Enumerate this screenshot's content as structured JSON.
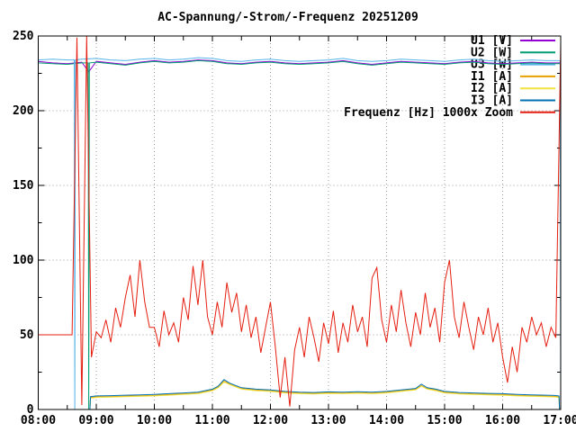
{
  "chart_data": {
    "type": "line",
    "title": "AC-Spannung/-Strom/-Frequenz 20251209",
    "xlabel": "",
    "ylabel": "",
    "x_axis": {
      "min_hour": 8,
      "max_hour": 17,
      "tick_labels": [
        "08:00",
        "09:00",
        "10:00",
        "11:00",
        "12:00",
        "13:00",
        "14:00",
        "15:00",
        "16:00",
        "17:00"
      ],
      "minor_step_hours": 0.5,
      "grid": "dotted-gray-at-hours"
    },
    "y_axis": {
      "min": 0,
      "max": 250,
      "tick_labels": [
        "0",
        "50",
        "100",
        "150",
        "200",
        "250"
      ],
      "major_step": 50,
      "minor_step": 25,
      "grid": "dotted-gray-at-majors"
    },
    "legend_position": "top-right-inside",
    "grid_color": "#999999",
    "border_color": "#000000",
    "background_color": "#ffffff",
    "series": [
      {
        "name": "U1 [V]",
        "color": "#9400d3",
        "points": [
          [
            8.0,
            233
          ],
          [
            8.25,
            232
          ],
          [
            8.5,
            231.5
          ],
          [
            8.75,
            232.5
          ],
          [
            8.87,
            226
          ],
          [
            9.0,
            233
          ],
          [
            9.25,
            232
          ],
          [
            9.5,
            231
          ],
          [
            9.75,
            232.5
          ],
          [
            10.0,
            233.5
          ],
          [
            10.25,
            232.5
          ],
          [
            10.5,
            233
          ],
          [
            10.75,
            234
          ],
          [
            11.0,
            233.5
          ],
          [
            11.25,
            232
          ],
          [
            11.5,
            231.5
          ],
          [
            11.75,
            232.5
          ],
          [
            12.0,
            233
          ],
          [
            12.25,
            232
          ],
          [
            12.5,
            231.5
          ],
          [
            12.75,
            232
          ],
          [
            13.0,
            232.5
          ],
          [
            13.25,
            233.5
          ],
          [
            13.5,
            232
          ],
          [
            13.75,
            231
          ],
          [
            14.0,
            232
          ],
          [
            14.25,
            233
          ],
          [
            14.5,
            232.5
          ],
          [
            14.75,
            232
          ],
          [
            15.0,
            231.5
          ],
          [
            15.25,
            232.5
          ],
          [
            15.5,
            233
          ],
          [
            15.75,
            232
          ],
          [
            16.0,
            231.5
          ],
          [
            16.25,
            232
          ],
          [
            16.5,
            232.5
          ],
          [
            16.75,
            232
          ],
          [
            17.0,
            232
          ]
        ]
      },
      {
        "name": "U2 [W]",
        "color": "#009e73",
        "points": [
          [
            8.0,
            232
          ],
          [
            8.25,
            231.5
          ],
          [
            8.5,
            231
          ],
          [
            8.75,
            232
          ],
          [
            8.86,
            232
          ],
          [
            8.87,
            0
          ],
          [
            8.88,
            232
          ],
          [
            9.0,
            232.5
          ],
          [
            9.25,
            231.5
          ],
          [
            9.5,
            230.5
          ],
          [
            9.75,
            232
          ],
          [
            10.0,
            233
          ],
          [
            10.25,
            232
          ],
          [
            10.5,
            232.5
          ],
          [
            10.75,
            233.5
          ],
          [
            11.0,
            233
          ],
          [
            11.25,
            231.5
          ],
          [
            11.5,
            231
          ],
          [
            11.75,
            232
          ],
          [
            12.0,
            232.5
          ],
          [
            12.25,
            231.5
          ],
          [
            12.5,
            231
          ],
          [
            12.75,
            231.5
          ],
          [
            13.0,
            232
          ],
          [
            13.25,
            233
          ],
          [
            13.5,
            231.5
          ],
          [
            13.75,
            230.5
          ],
          [
            14.0,
            231.5
          ],
          [
            14.25,
            232.5
          ],
          [
            14.5,
            232
          ],
          [
            14.75,
            231.5
          ],
          [
            15.0,
            231
          ],
          [
            15.25,
            232
          ],
          [
            15.5,
            232.5
          ],
          [
            15.75,
            231.5
          ],
          [
            16.0,
            231
          ],
          [
            16.25,
            231.5
          ],
          [
            16.5,
            232
          ],
          [
            16.75,
            231.5
          ],
          [
            17.0,
            231.5
          ]
        ]
      },
      {
        "name": "U3 [W]",
        "color": "#56b4e9",
        "points": [
          [
            8.0,
            234
          ],
          [
            8.25,
            234.5
          ],
          [
            8.5,
            234
          ],
          [
            8.62,
            234
          ],
          [
            8.63,
            0
          ],
          [
            8.64,
            234
          ],
          [
            8.75,
            234.5
          ],
          [
            9.0,
            235
          ],
          [
            9.25,
            234
          ],
          [
            9.5,
            233.5
          ],
          [
            9.75,
            234.5
          ],
          [
            10.0,
            235
          ],
          [
            10.25,
            234
          ],
          [
            10.5,
            234.5
          ],
          [
            10.75,
            235.5
          ],
          [
            11.0,
            235
          ],
          [
            11.25,
            233.5
          ],
          [
            11.5,
            233
          ],
          [
            11.75,
            234
          ],
          [
            12.0,
            234.5
          ],
          [
            12.25,
            233.5
          ],
          [
            12.5,
            233
          ],
          [
            12.75,
            233.5
          ],
          [
            13.0,
            234
          ],
          [
            13.25,
            235
          ],
          [
            13.5,
            233.5
          ],
          [
            13.75,
            233
          ],
          [
            14.0,
            233.5
          ],
          [
            14.25,
            234.5
          ],
          [
            14.5,
            234
          ],
          [
            14.75,
            233.5
          ],
          [
            15.0,
            233
          ],
          [
            15.25,
            234
          ],
          [
            15.5,
            234.5
          ],
          [
            15.75,
            233.5
          ],
          [
            16.0,
            233
          ],
          [
            16.25,
            233.5
          ],
          [
            16.5,
            234
          ],
          [
            16.75,
            233.5
          ],
          [
            16.99,
            233.5
          ],
          [
            17.0,
            0
          ]
        ]
      },
      {
        "name": "I1 [A]",
        "color": "#e69f00",
        "points": [
          [
            8.0,
            0
          ],
          [
            8.89,
            0
          ],
          [
            8.9,
            8
          ],
          [
            9.0,
            8.5
          ],
          [
            9.25,
            8.7
          ],
          [
            9.5,
            9
          ],
          [
            9.75,
            9.2
          ],
          [
            10.0,
            9.5
          ],
          [
            10.25,
            10
          ],
          [
            10.5,
            10.5
          ],
          [
            10.75,
            11
          ],
          [
            11.0,
            13
          ],
          [
            11.1,
            15
          ],
          [
            11.2,
            19
          ],
          [
            11.3,
            17
          ],
          [
            11.4,
            15.5
          ],
          [
            11.5,
            14
          ],
          [
            11.75,
            13
          ],
          [
            12.0,
            12.5
          ],
          [
            12.25,
            11.5
          ],
          [
            12.5,
            11
          ],
          [
            12.75,
            10.8
          ],
          [
            13.0,
            11.2
          ],
          [
            13.25,
            11
          ],
          [
            13.5,
            11.3
          ],
          [
            13.75,
            11
          ],
          [
            14.0,
            11.5
          ],
          [
            14.25,
            12.5
          ],
          [
            14.5,
            13.5
          ],
          [
            14.6,
            16
          ],
          [
            14.7,
            14
          ],
          [
            14.85,
            13
          ],
          [
            15.0,
            11.5
          ],
          [
            15.25,
            10.8
          ],
          [
            15.5,
            10.5
          ],
          [
            15.75,
            10.2
          ],
          [
            16.0,
            10
          ],
          [
            16.25,
            9.5
          ],
          [
            16.5,
            9.2
          ],
          [
            16.75,
            9
          ],
          [
            16.9,
            8.8
          ],
          [
            16.97,
            8.5
          ],
          [
            16.98,
            0
          ],
          [
            17.0,
            0
          ]
        ]
      },
      {
        "name": "I2 [A]",
        "color": "#f0e442",
        "points": [
          [
            8.0,
            0
          ],
          [
            8.89,
            0
          ],
          [
            8.9,
            7.6
          ],
          [
            9.0,
            8.1
          ],
          [
            9.25,
            8.3
          ],
          [
            9.5,
            8.6
          ],
          [
            9.75,
            8.8
          ],
          [
            10.0,
            9.1
          ],
          [
            10.25,
            9.6
          ],
          [
            10.5,
            10.1
          ],
          [
            10.75,
            10.6
          ],
          [
            11.0,
            12.6
          ],
          [
            11.1,
            14.6
          ],
          [
            11.2,
            18.4
          ],
          [
            11.3,
            16.6
          ],
          [
            11.4,
            15.1
          ],
          [
            11.5,
            13.6
          ],
          [
            11.75,
            12.6
          ],
          [
            12.0,
            12.1
          ],
          [
            12.25,
            11.1
          ],
          [
            12.5,
            10.6
          ],
          [
            12.75,
            10.4
          ],
          [
            13.0,
            10.8
          ],
          [
            13.25,
            10.6
          ],
          [
            13.5,
            10.9
          ],
          [
            13.75,
            10.6
          ],
          [
            14.0,
            11.1
          ],
          [
            14.25,
            12.1
          ],
          [
            14.5,
            13.1
          ],
          [
            14.6,
            15.6
          ],
          [
            14.7,
            13.6
          ],
          [
            14.85,
            12.6
          ],
          [
            15.0,
            11.1
          ],
          [
            15.25,
            10.4
          ],
          [
            15.5,
            10.1
          ],
          [
            15.75,
            9.8
          ],
          [
            16.0,
            9.6
          ],
          [
            16.25,
            9.1
          ],
          [
            16.5,
            8.8
          ],
          [
            16.75,
            8.6
          ],
          [
            16.9,
            8.4
          ],
          [
            16.97,
            8.1
          ],
          [
            16.98,
            0
          ],
          [
            17.0,
            0
          ]
        ]
      },
      {
        "name": "I3 [A]",
        "color": "#0072b2",
        "points": [
          [
            8.0,
            0
          ],
          [
            8.89,
            0
          ],
          [
            8.9,
            8.6
          ],
          [
            9.0,
            9.1
          ],
          [
            9.25,
            9.3
          ],
          [
            9.5,
            9.6
          ],
          [
            9.75,
            9.8
          ],
          [
            10.0,
            10.1
          ],
          [
            10.25,
            10.6
          ],
          [
            10.5,
            11.1
          ],
          [
            10.75,
            11.6
          ],
          [
            11.0,
            13.6
          ],
          [
            11.1,
            15.6
          ],
          [
            11.2,
            20
          ],
          [
            11.3,
            17.6
          ],
          [
            11.4,
            16.1
          ],
          [
            11.5,
            14.6
          ],
          [
            11.75,
            13.6
          ],
          [
            12.0,
            13.1
          ],
          [
            12.25,
            12.1
          ],
          [
            12.5,
            11.6
          ],
          [
            12.75,
            11.4
          ],
          [
            13.0,
            11.8
          ],
          [
            13.25,
            11.6
          ],
          [
            13.5,
            11.9
          ],
          [
            13.75,
            11.6
          ],
          [
            14.0,
            12.1
          ],
          [
            14.25,
            13.1
          ],
          [
            14.5,
            14.1
          ],
          [
            14.6,
            17
          ],
          [
            14.7,
            14.6
          ],
          [
            14.85,
            13.6
          ],
          [
            15.0,
            12.1
          ],
          [
            15.25,
            11.4
          ],
          [
            15.5,
            11.1
          ],
          [
            15.75,
            10.8
          ],
          [
            16.0,
            10.6
          ],
          [
            16.25,
            10.1
          ],
          [
            16.5,
            9.8
          ],
          [
            16.75,
            9.6
          ],
          [
            16.9,
            9.4
          ],
          [
            16.97,
            9.1
          ],
          [
            16.98,
            0
          ],
          [
            17.0,
            0
          ]
        ]
      },
      {
        "name": "Frequenz [Hz] 1000x Zoom",
        "color": "#e51e10",
        "t0": 8,
        "dt_minutes": 5,
        "values": [
          50,
          50,
          50,
          50,
          50,
          50,
          50,
          50,
          249,
          3,
          250,
          35,
          52,
          48,
          60,
          45,
          68,
          55,
          75,
          90,
          62,
          100,
          72,
          55,
          55,
          42,
          66,
          50,
          58,
          45,
          75,
          60,
          96,
          70,
          100,
          62,
          50,
          72,
          55,
          85,
          65,
          78,
          52,
          70,
          48,
          62,
          38,
          55,
          72,
          42,
          8,
          35,
          2,
          40,
          55,
          35,
          62,
          48,
          32,
          58,
          44,
          66,
          38,
          58,
          45,
          70,
          52,
          62,
          42,
          88,
          95,
          60,
          45,
          70,
          52,
          80,
          58,
          42,
          65,
          50,
          78,
          55,
          68,
          45,
          85,
          100,
          62,
          48,
          72,
          55,
          40,
          62,
          50,
          68,
          45,
          58,
          35,
          18,
          42,
          25,
          55,
          45,
          62,
          50,
          58,
          42,
          55,
          48,
          245
        ]
      }
    ]
  }
}
